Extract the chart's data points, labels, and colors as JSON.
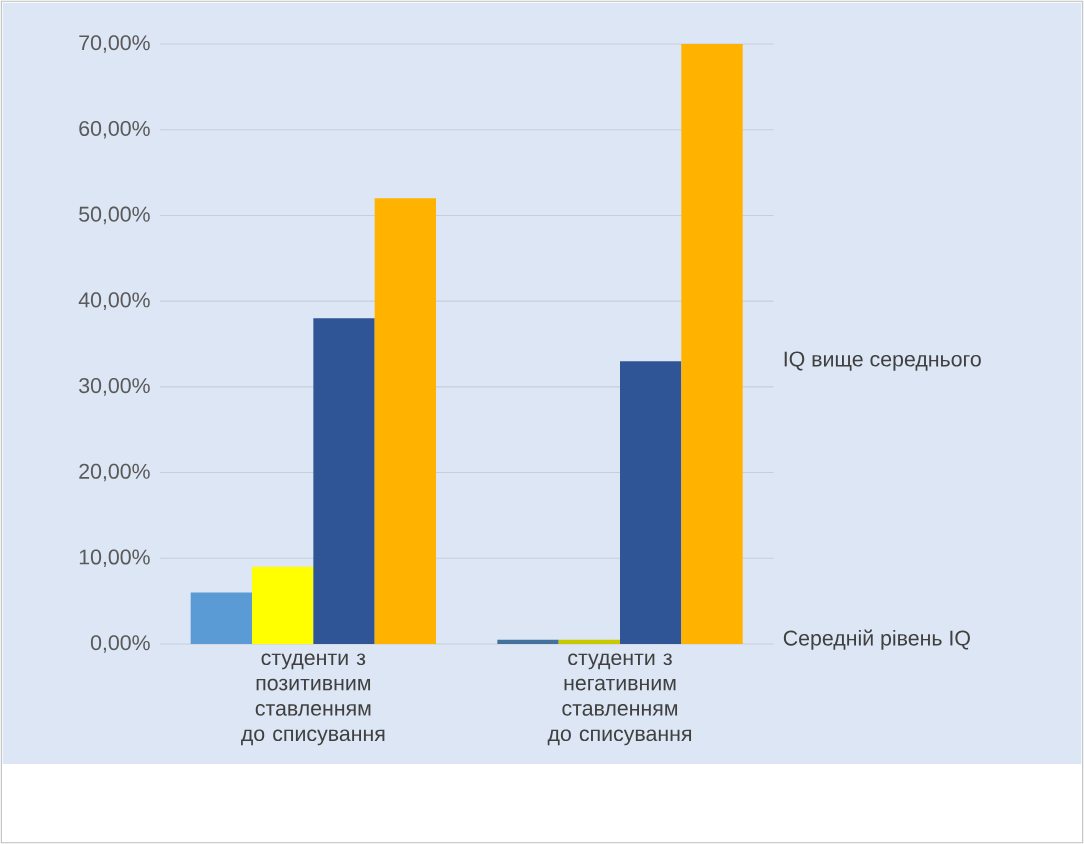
{
  "chart_data": {
    "type": "bar",
    "categories": [
      "студенти з позитивним ставленням до списування",
      "студенти з негативним ставленням до списування"
    ],
    "series": [
      {
        "name": "Середній рівень IQ",
        "colors": [
          "#5b9bd5",
          "#41719c"
        ],
        "values": [
          6,
          0.5
        ]
      },
      {
        "colors": [
          "#ffff00",
          "#c9c900"
        ],
        "values": [
          9,
          0.5
        ]
      },
      {
        "name": "IQ вище середнього",
        "colors": [
          "#2f5597",
          "#2f5597"
        ],
        "values": [
          38,
          33
        ]
      },
      {
        "colors": [
          "#ffb300",
          "#ffb300"
        ],
        "values": [
          52,
          70
        ]
      }
    ],
    "ylim": [
      0,
      70
    ],
    "yticks": [
      {
        "value": 0,
        "label": "0,00%"
      },
      {
        "value": 10,
        "label": "10,00%"
      },
      {
        "value": 20,
        "label": "20,00%"
      },
      {
        "value": 30,
        "label": "30,00%"
      },
      {
        "value": 40,
        "label": "40,00%"
      },
      {
        "value": 50,
        "label": "50,00%"
      },
      {
        "value": 60,
        "label": "60,00%"
      },
      {
        "value": 70,
        "label": "70,00%"
      }
    ],
    "grid": "y"
  }
}
